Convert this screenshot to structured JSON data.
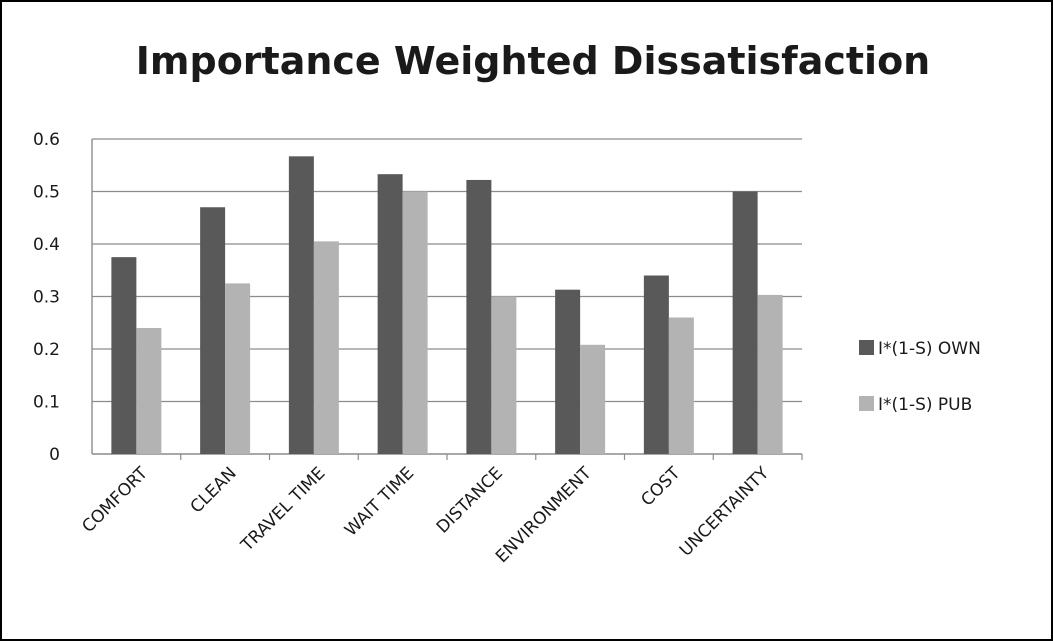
{
  "chart_data": {
    "type": "bar",
    "title": "Importance Weighted Dissatisfaction",
    "categories": [
      "COMFORT",
      "CLEAN",
      "TRAVEL TIME",
      "WAIT TIME",
      "DISTANCE",
      "ENVIRONMENT",
      "COST",
      "UNCERTAINTY"
    ],
    "series": [
      {
        "name": "I*(1-S) OWN",
        "color": "#595959",
        "values": [
          0.375,
          0.47,
          0.567,
          0.533,
          0.522,
          0.313,
          0.34,
          0.5
        ]
      },
      {
        "name": "I*(1-S) PUB",
        "color": "#b3b3b3",
        "values": [
          0.24,
          0.325,
          0.405,
          0.5,
          0.3,
          0.208,
          0.26,
          0.303
        ]
      }
    ],
    "ylim": [
      0,
      0.6
    ],
    "yticks": [
      "0",
      "0.1",
      "0.2",
      "0.3",
      "0.4",
      "0.5",
      "0.6"
    ],
    "grid": true,
    "legend_position": "right"
  }
}
